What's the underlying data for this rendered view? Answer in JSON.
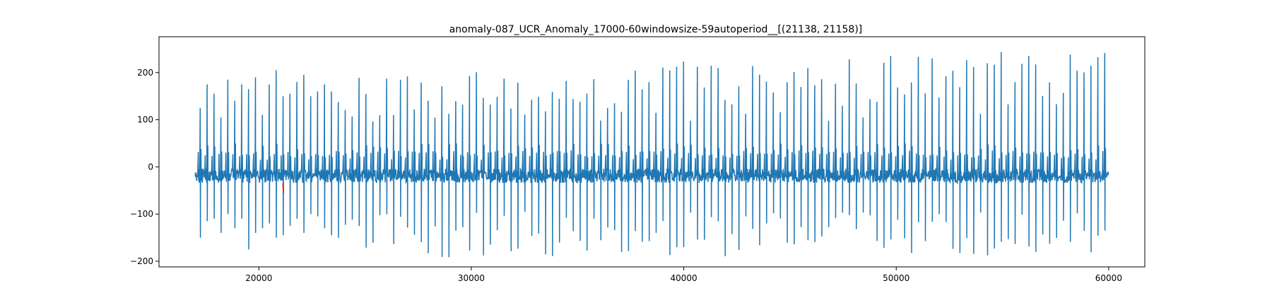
{
  "chart_data": {
    "type": "line",
    "title": "anomaly-087_UCR_Anomaly_17000-60windowsize-59autoperiod__[(21138, 21158)]",
    "xlabel": "",
    "ylabel": "",
    "xlim": [
      15300,
      61700
    ],
    "ylim": [
      -212,
      276
    ],
    "x_ticks": [
      20000,
      30000,
      40000,
      50000,
      60000
    ],
    "y_ticks": [
      -200,
      -100,
      0,
      100,
      200
    ],
    "grid": false,
    "legend": "none",
    "series": [
      {
        "color": "#1f77b4",
        "x_start": 17000,
        "x_end": 60000,
        "beat_period": 325,
        "beat_peaks_first_segment": [
          125,
          175,
          155,
          105,
          185,
          140,
          175,
          165,
          190,
          110,
          175,
          205,
          150,
          155,
          180,
          195,
          150,
          160,
          175,
          160
        ],
        "beat_troughs_first_segment": [
          -150,
          -115,
          -110,
          -140,
          -100,
          -130,
          -110,
          -175,
          -140,
          -130,
          -120,
          -150,
          -145,
          -125,
          -110,
          -140,
          -100,
          -105,
          -130,
          -145
        ],
        "peak_range": [
          95,
          258
        ],
        "trough_range": [
          -192,
          -95
        ],
        "baseline_range": [
          -40,
          30
        ]
      },
      {
        "color": "#d62728",
        "x": [
          21138,
          21158
        ],
        "y": [
          -35,
          -55
        ]
      }
    ],
    "annotations": [
      {
        "type": "anomaly_window",
        "x_start": 21138,
        "x_end": 21158,
        "color": "#d62728"
      }
    ]
  }
}
